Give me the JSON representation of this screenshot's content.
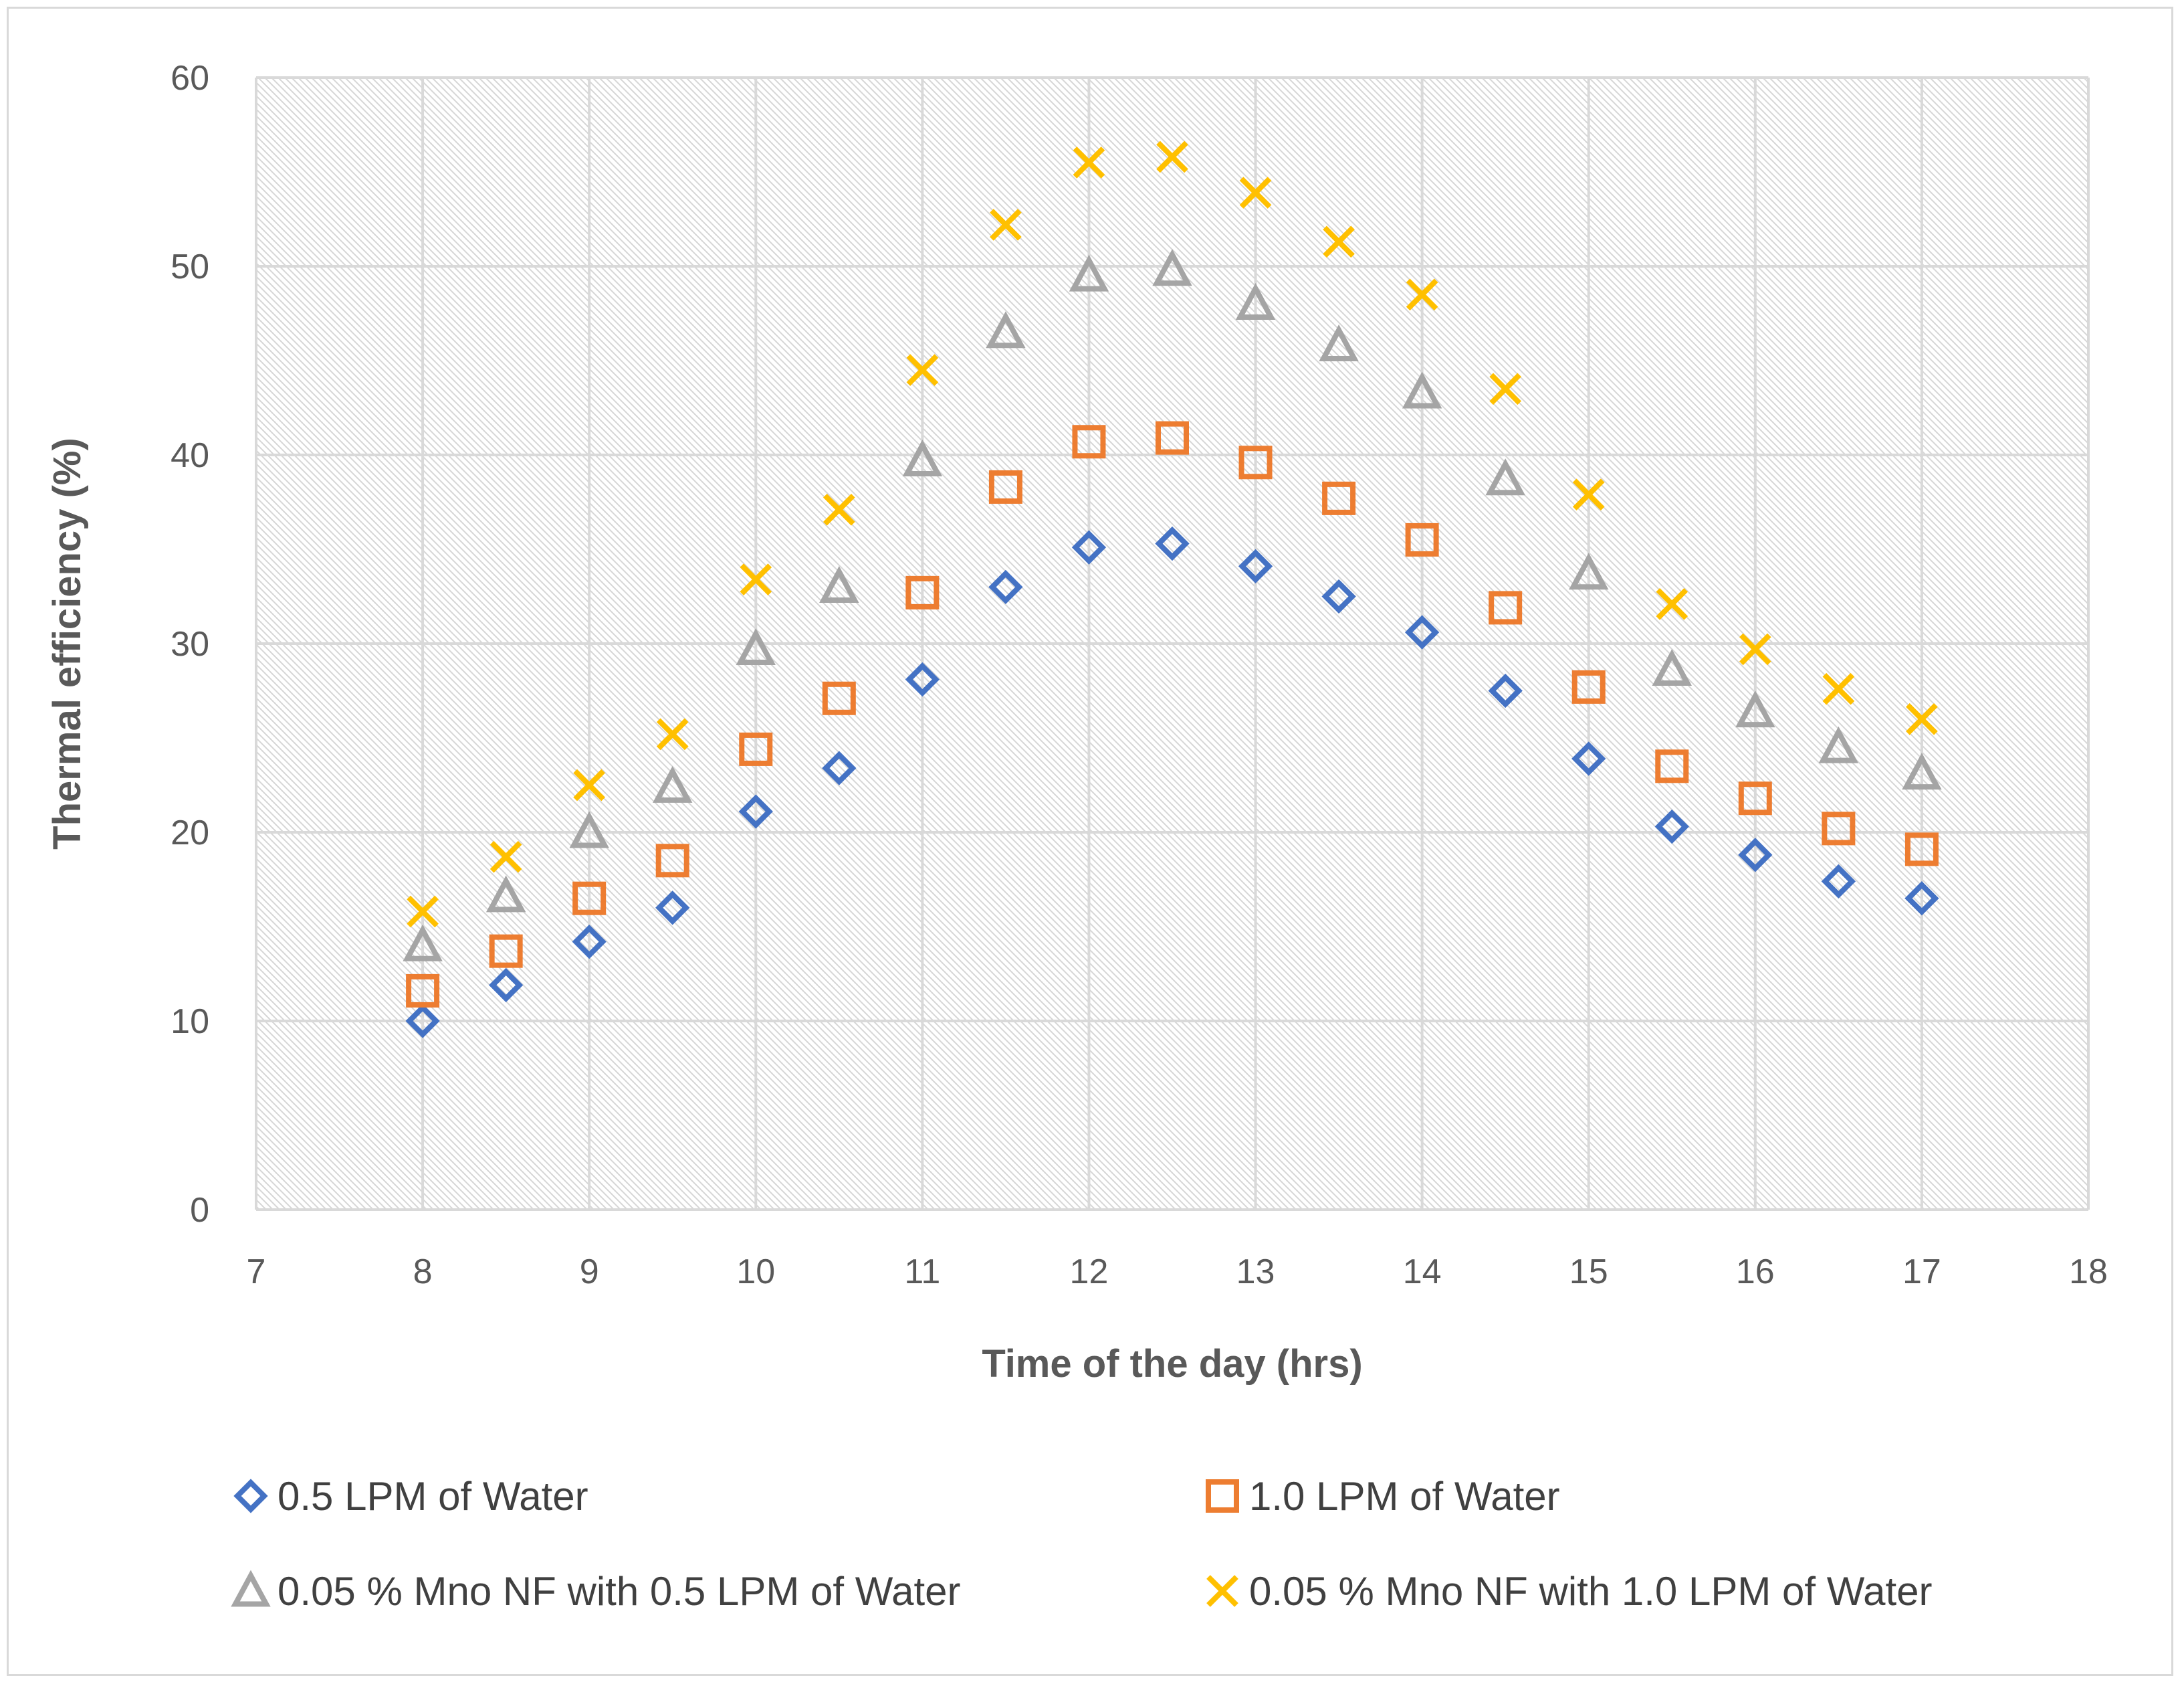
{
  "chart_data": {
    "type": "scatter",
    "title": "",
    "xlabel": "Time of the day (hrs)",
    "ylabel": "Thermal efficiency (%)",
    "xlim": [
      7,
      18
    ],
    "ylim": [
      0,
      60
    ],
    "xticks": [
      7,
      8,
      9,
      10,
      11,
      12,
      13,
      14,
      15,
      16,
      17,
      18
    ],
    "yticks": [
      0,
      10,
      20,
      30,
      40,
      50,
      60
    ],
    "grid": true,
    "legend_position": "bottom",
    "x": [
      8,
      8.5,
      9,
      9.5,
      10,
      10.5,
      11,
      11.5,
      12,
      12.5,
      13,
      13.5,
      14,
      14.5,
      15,
      15.5,
      16,
      16.5,
      17
    ],
    "series": [
      {
        "name": "0.5 LPM of Water",
        "marker": "diamond",
        "color": "#4472C4",
        "values": [
          10.0,
          11.9,
          14.2,
          16.0,
          21.1,
          23.4,
          28.1,
          33.0,
          35.1,
          35.3,
          34.1,
          32.5,
          30.6,
          27.5,
          23.9,
          20.3,
          18.8,
          17.4,
          16.5
        ]
      },
      {
        "name": "1.0 LPM of Water",
        "marker": "square",
        "color": "#ED7D31",
        "values": [
          11.6,
          13.7,
          16.5,
          18.5,
          24.4,
          27.1,
          32.7,
          38.3,
          40.7,
          40.9,
          39.6,
          37.7,
          35.5,
          31.9,
          27.7,
          23.5,
          21.8,
          20.2,
          19.1
        ]
      },
      {
        "name": "0.05 % Mno NF with 0.5 LPM of Water",
        "marker": "triangle",
        "color": "#A5A5A5",
        "values": [
          14.0,
          16.6,
          20.0,
          22.4,
          29.7,
          33.0,
          39.7,
          46.5,
          49.5,
          49.8,
          48.0,
          45.8,
          43.3,
          38.7,
          33.7,
          28.6,
          26.4,
          24.5,
          23.1
        ]
      },
      {
        "name": "0.05 % Mno NF with 1.0 LPM of Water",
        "marker": "cross",
        "color": "#FFC000",
        "values": [
          15.8,
          18.7,
          22.5,
          25.2,
          33.4,
          37.1,
          44.5,
          52.2,
          55.5,
          55.8,
          53.9,
          51.3,
          48.5,
          43.5,
          37.9,
          32.1,
          29.7,
          27.6,
          26.0
        ]
      }
    ]
  }
}
